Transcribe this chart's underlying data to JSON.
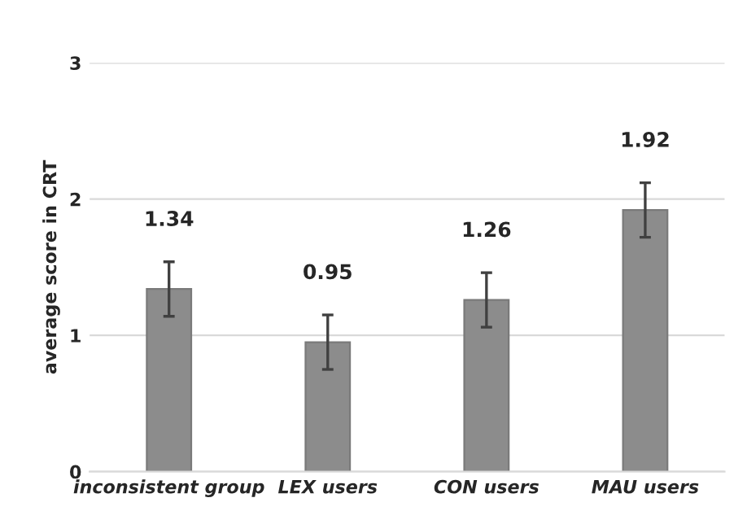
{
  "chart_data": {
    "type": "bar",
    "ylabel": "average score in CRT",
    "categories": [
      "inconsistent group",
      "LEX users",
      "CON users",
      "MAU users"
    ],
    "values": [
      1.34,
      0.95,
      1.26,
      1.92
    ],
    "errors": [
      0.2,
      0.2,
      0.2,
      0.2
    ],
    "color": "#8c8c8c",
    "ylim": [
      0,
      3
    ],
    "yticks": [
      0,
      1,
      2,
      3
    ],
    "grid": "y",
    "data_labels": true
  }
}
